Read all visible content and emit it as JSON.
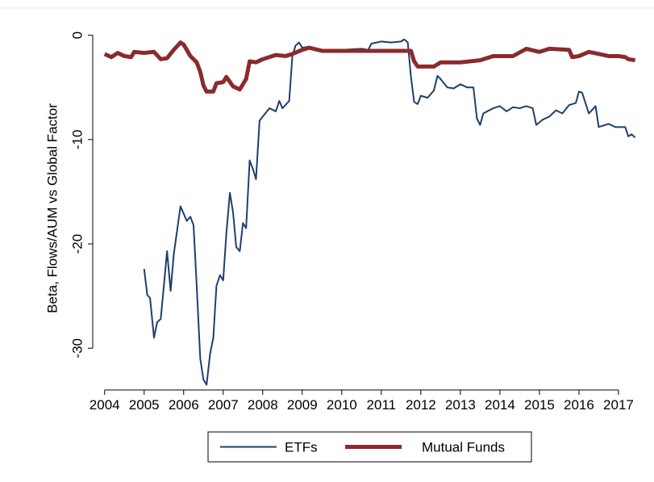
{
  "chart_data": {
    "type": "line",
    "y_label": "Beta, Flows/AUM vs Global Factor",
    "xlim": [
      2003.7,
      2017.47
    ],
    "ylim": [
      -34,
      2.6
    ],
    "xticks": [
      2004,
      2005,
      2006,
      2007,
      2008,
      2009,
      2010,
      2011,
      2012,
      2013,
      2014,
      2015,
      2016,
      2017
    ],
    "yticks": [
      0,
      -10,
      -20,
      -30
    ],
    "legend": "bottom",
    "series": [
      {
        "name": "ETFs",
        "color": "#1f3f6e",
        "line_width": 2,
        "x": [
          2005.0,
          2005.08,
          2005.15,
          2005.25,
          2005.33,
          2005.42,
          2005.5,
          2005.58,
          2005.67,
          2005.75,
          2005.92,
          2006.08,
          2006.17,
          2006.25,
          2006.33,
          2006.42,
          2006.5,
          2006.58,
          2006.67,
          2006.75,
          2006.83,
          2006.92,
          2007.0,
          2007.08,
          2007.17,
          2007.25,
          2007.33,
          2007.42,
          2007.5,
          2007.58,
          2007.67,
          2007.75,
          2007.83,
          2007.92,
          2008.0,
          2008.17,
          2008.33,
          2008.42,
          2008.5,
          2008.67,
          2008.75,
          2008.83,
          2008.92,
          2009.0,
          2009.17,
          2009.33,
          2009.5,
          2009.75,
          2010.0,
          2010.5,
          2010.67,
          2010.75,
          2011.0,
          2011.25,
          2011.5,
          2011.58,
          2011.67,
          2011.75,
          2011.83,
          2011.92,
          2012.0,
          2012.17,
          2012.33,
          2012.42,
          2012.5,
          2012.67,
          2012.83,
          2013.0,
          2013.17,
          2013.33,
          2013.42,
          2013.5,
          2013.58,
          2013.83,
          2014.0,
          2014.17,
          2014.33,
          2014.5,
          2014.67,
          2014.83,
          2014.92,
          2015.08,
          2015.25,
          2015.42,
          2015.58,
          2015.75,
          2015.92,
          2016.0,
          2016.08,
          2016.25,
          2016.42,
          2016.5,
          2016.75,
          2016.92,
          2017.17,
          2017.25,
          2017.33,
          2017.42
        ],
        "values": [
          -22.4,
          -24.9,
          -25.2,
          -29.0,
          -27.5,
          -27.2,
          -24.0,
          -20.7,
          -24.5,
          -21.0,
          -16.4,
          -17.8,
          -17.4,
          -18.2,
          -24.0,
          -31.0,
          -33.0,
          -33.5,
          -30.5,
          -29.0,
          -24.0,
          -23.0,
          -23.5,
          -19.0,
          -15.1,
          -17.0,
          -20.3,
          -20.7,
          -18.0,
          -18.5,
          -12.0,
          -12.8,
          -13.8,
          -8.2,
          -7.8,
          -7.0,
          -7.3,
          -6.3,
          -7.0,
          -6.3,
          -2.0,
          -1.0,
          -0.7,
          -1.2,
          -1.1,
          -1.3,
          -1.6,
          -1.4,
          -1.4,
          -1.3,
          -1.4,
          -0.8,
          -0.6,
          -0.7,
          -0.6,
          -0.4,
          -0.7,
          -4.0,
          -6.4,
          -6.6,
          -5.8,
          -6.0,
          -5.3,
          -3.9,
          -4.2,
          -5.0,
          -5.1,
          -4.7,
          -5.0,
          -5.0,
          -8.0,
          -8.6,
          -7.5,
          -7.0,
          -6.8,
          -7.3,
          -6.9,
          -7.0,
          -6.8,
          -7.0,
          -8.6,
          -8.1,
          -7.8,
          -7.2,
          -7.5,
          -6.7,
          -6.5,
          -5.4,
          -5.5,
          -7.5,
          -6.8,
          -8.8,
          -8.5,
          -8.8,
          -8.8,
          -9.7,
          -9.5,
          -9.8
        ]
      },
      {
        "name": "Mutual Funds",
        "color": "#8b2a2e",
        "line_width": 5,
        "x": [
          2004.0,
          2004.17,
          2004.33,
          2004.5,
          2004.67,
          2004.75,
          2005.0,
          2005.25,
          2005.42,
          2005.58,
          2005.75,
          2005.92,
          2006.0,
          2006.17,
          2006.33,
          2006.42,
          2006.5,
          2006.58,
          2006.75,
          2006.83,
          2007.0,
          2007.08,
          2007.25,
          2007.42,
          2007.58,
          2007.67,
          2007.83,
          2008.0,
          2008.33,
          2008.58,
          2008.75,
          2009.0,
          2009.17,
          2009.5,
          2011.75,
          2011.83,
          2011.92,
          2012.33,
          2012.5,
          2013.0,
          2013.5,
          2013.83,
          2014.33,
          2014.67,
          2015.0,
          2015.25,
          2015.75,
          2015.83,
          2016.0,
          2016.25,
          2016.5,
          2016.75,
          2017.0,
          2017.17,
          2017.25,
          2017.42
        ],
        "values": [
          -1.8,
          -2.1,
          -1.7,
          -2.0,
          -2.1,
          -1.6,
          -1.7,
          -1.6,
          -2.3,
          -2.2,
          -1.4,
          -0.7,
          -0.9,
          -2.0,
          -2.6,
          -3.5,
          -4.8,
          -5.4,
          -5.4,
          -4.6,
          -4.5,
          -4.0,
          -4.9,
          -5.2,
          -4.2,
          -2.5,
          -2.6,
          -2.3,
          -1.9,
          -2.0,
          -1.8,
          -1.4,
          -1.2,
          -1.5,
          -1.5,
          -2.5,
          -3.0,
          -3.0,
          -2.6,
          -2.6,
          -2.4,
          -2.0,
          -2.0,
          -1.3,
          -1.6,
          -1.3,
          -1.4,
          -2.1,
          -2.0,
          -1.6,
          -1.8,
          -2.0,
          -2.0,
          -2.1,
          -2.3,
          -2.4
        ]
      }
    ]
  }
}
